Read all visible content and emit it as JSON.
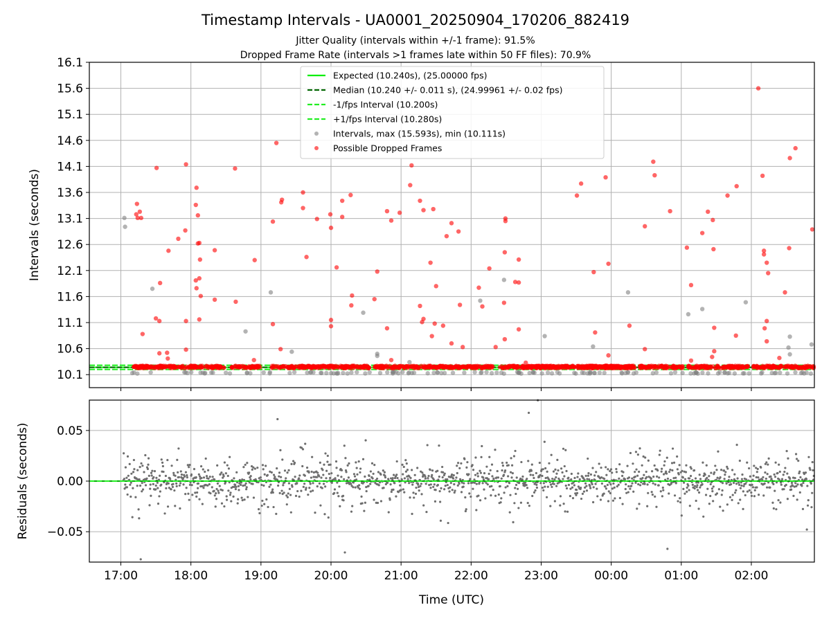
{
  "chart_data": {
    "title": "Timestamp Intervals - UA0001_20250904_170206_882419",
    "subtitle_1": "Jitter Quality (intervals within +/-1 frame): 91.5%",
    "subtitle_2": "Dropped Frame Rate (intervals >1 frames late within 50 FF files): 70.9%",
    "xlabel": "Time (UTC)",
    "x_ticks": [
      "17:00",
      "18:00",
      "19:00",
      "20:00",
      "21:00",
      "22:00",
      "23:00",
      "00:00",
      "01:00",
      "02:00"
    ],
    "x_tick_hours": [
      17,
      18,
      19,
      20,
      21,
      22,
      23,
      24,
      25,
      26
    ],
    "x_range_hours": [
      16.55,
      26.9
    ],
    "data_start_hour": 17.035,
    "top": {
      "type": "scatter",
      "ylabel": "Intervals (seconds)",
      "y_ticks": [
        "10.1",
        "10.6",
        "11.1",
        "11.6",
        "12.1",
        "12.6",
        "13.1",
        "13.6",
        "14.1",
        "14.6",
        "15.1",
        "15.6",
        "16.1"
      ],
      "ylim": [
        9.85,
        16.1
      ],
      "grid": true,
      "expected": 10.24,
      "median": 10.24,
      "lower": 10.2,
      "upper": 10.28,
      "legend": [
        {
          "label": "Expected (10.240s), (25.00000 fps)",
          "style": "solid",
          "color": "#00ee00"
        },
        {
          "label": "Median (10.240 +/- 0.011 s), (24.99961 +/- 0.02 fps)",
          "style": "dashed",
          "color": "#006400"
        },
        {
          "label": "-1/fps Interval (10.200s)",
          "style": "dashed",
          "color": "#22ee22"
        },
        {
          "label": "+1/fps Interval (10.280s)",
          "style": "dashed",
          "color": "#22ee22"
        },
        {
          "label": "Intervals, max (15.593s), min (10.111s)",
          "style": "marker",
          "color": "#808080"
        },
        {
          "label": "Possible Dropped Frames",
          "style": "marker",
          "color": "#ff0000"
        }
      ],
      "dropped_points": [
        [
          17.23,
          13.38
        ],
        [
          17.22,
          13.18
        ],
        [
          17.27,
          13.23
        ],
        [
          17.29,
          13.11
        ],
        [
          17.24,
          13.11
        ],
        [
          17.31,
          10.88
        ],
        [
          17.51,
          14.07
        ],
        [
          17.5,
          11.18
        ],
        [
          17.55,
          11.13
        ],
        [
          17.56,
          11.86
        ],
        [
          17.55,
          10.51
        ],
        [
          17.66,
          10.52
        ],
        [
          17.67,
          10.41
        ],
        [
          17.68,
          12.48
        ],
        [
          17.82,
          12.71
        ],
        [
          17.92,
          12.87
        ],
        [
          17.93,
          14.14
        ],
        [
          17.93,
          11.13
        ],
        [
          17.93,
          10.58
        ],
        [
          18.07,
          13.36
        ],
        [
          18.08,
          13.69
        ],
        [
          18.1,
          13.16
        ],
        [
          18.1,
          12.62
        ],
        [
          18.12,
          12.63
        ],
        [
          18.13,
          12.31
        ],
        [
          18.07,
          11.91
        ],
        [
          18.12,
          11.95
        ],
        [
          18.08,
          11.76
        ],
        [
          18.14,
          11.61
        ],
        [
          18.12,
          11.16
        ],
        [
          18.34,
          12.49
        ],
        [
          18.34,
          11.54
        ],
        [
          18.63,
          14.06
        ],
        [
          18.64,
          11.5
        ],
        [
          18.91,
          12.3
        ],
        [
          18.9,
          10.38
        ],
        [
          19.17,
          13.04
        ],
        [
          19.22,
          14.55
        ],
        [
          19.3,
          13.46
        ],
        [
          19.29,
          13.41
        ],
        [
          19.17,
          11.07
        ],
        [
          19.28,
          10.59
        ],
        [
          19.6,
          13.6
        ],
        [
          19.6,
          13.3
        ],
        [
          19.65,
          12.36
        ],
        [
          19.8,
          13.09
        ],
        [
          19.99,
          13.18
        ],
        [
          20.0,
          12.92
        ],
        [
          20.0,
          11.15
        ],
        [
          20.0,
          11.03
        ],
        [
          20.08,
          12.16
        ],
        [
          20.16,
          13.44
        ],
        [
          20.16,
          13.13
        ],
        [
          20.28,
          13.55
        ],
        [
          20.3,
          11.62
        ],
        [
          20.29,
          11.43
        ],
        [
          20.62,
          11.55
        ],
        [
          20.66,
          12.08
        ],
        [
          20.8,
          13.24
        ],
        [
          20.86,
          13.06
        ],
        [
          20.8,
          10.99
        ],
        [
          20.86,
          10.38
        ],
        [
          20.98,
          13.21
        ],
        [
          21.13,
          13.74
        ],
        [
          21.15,
          14.12
        ],
        [
          21.27,
          13.44
        ],
        [
          21.32,
          13.26
        ],
        [
          21.27,
          11.42
        ],
        [
          21.32,
          11.17
        ],
        [
          21.3,
          11.11
        ],
        [
          21.42,
          12.25
        ],
        [
          21.46,
          13.28
        ],
        [
          21.48,
          11.08
        ],
        [
          21.44,
          10.84
        ],
        [
          21.5,
          11.8
        ],
        [
          21.6,
          11.04
        ],
        [
          21.65,
          12.76
        ],
        [
          21.72,
          13.01
        ],
        [
          21.72,
          10.7
        ],
        [
          21.82,
          12.85
        ],
        [
          21.84,
          11.44
        ],
        [
          21.88,
          10.63
        ],
        [
          22.11,
          11.77
        ],
        [
          22.16,
          11.41
        ],
        [
          22.26,
          12.14
        ],
        [
          22.35,
          10.63
        ],
        [
          22.49,
          13.1
        ],
        [
          22.49,
          13.05
        ],
        [
          22.48,
          12.45
        ],
        [
          22.47,
          11.48
        ],
        [
          22.48,
          10.78
        ],
        [
          22.63,
          11.88
        ],
        [
          22.68,
          11.87
        ],
        [
          22.68,
          12.31
        ],
        [
          22.68,
          10.97
        ],
        [
          22.78,
          10.33
        ],
        [
          23.51,
          13.54
        ],
        [
          23.57,
          13.77
        ],
        [
          23.75,
          12.07
        ],
        [
          23.77,
          10.91
        ],
        [
          23.92,
          13.89
        ],
        [
          23.96,
          12.23
        ],
        [
          23.96,
          10.47
        ],
        [
          24.26,
          11.04
        ],
        [
          24.48,
          12.95
        ],
        [
          24.48,
          10.59
        ],
        [
          24.6,
          14.19
        ],
        [
          24.62,
          13.93
        ],
        [
          24.84,
          13.24
        ],
        [
          25.08,
          12.54
        ],
        [
          25.14,
          11.82
        ],
        [
          25.14,
          10.37
        ],
        [
          25.3,
          12.82
        ],
        [
          25.38,
          13.23
        ],
        [
          25.45,
          13.07
        ],
        [
          25.46,
          12.51
        ],
        [
          25.47,
          11.0
        ],
        [
          25.47,
          10.55
        ],
        [
          25.44,
          10.44
        ],
        [
          25.66,
          13.54
        ],
        [
          25.79,
          13.72
        ],
        [
          25.78,
          10.85
        ],
        [
          26.1,
          15.6
        ],
        [
          26.16,
          13.92
        ],
        [
          26.18,
          12.48
        ],
        [
          26.18,
          12.41
        ],
        [
          26.22,
          12.25
        ],
        [
          26.24,
          12.05
        ],
        [
          26.22,
          11.13
        ],
        [
          26.19,
          10.99
        ],
        [
          26.22,
          10.74
        ],
        [
          26.4,
          10.42
        ],
        [
          26.48,
          11.68
        ],
        [
          26.54,
          12.53
        ],
        [
          26.55,
          14.26
        ],
        [
          26.63,
          14.45
        ],
        [
          26.87,
          12.89
        ]
      ],
      "gray_points": [
        [
          17.05,
          13.11
        ],
        [
          17.06,
          12.94
        ],
        [
          17.45,
          11.75
        ],
        [
          18.78,
          10.93
        ],
        [
          19.14,
          11.68
        ],
        [
          19.44,
          10.54
        ],
        [
          20.46,
          11.29
        ],
        [
          20.66,
          10.5
        ],
        [
          20.66,
          10.46
        ],
        [
          21.12,
          10.34
        ],
        [
          22.13,
          11.52
        ],
        [
          22.47,
          11.92
        ],
        [
          23.05,
          10.84
        ],
        [
          23.74,
          10.64
        ],
        [
          24.24,
          11.68
        ],
        [
          25.1,
          11.26
        ],
        [
          25.3,
          11.36
        ],
        [
          25.92,
          11.49
        ],
        [
          26.55,
          10.83
        ],
        [
          26.55,
          10.49
        ],
        [
          26.53,
          10.62
        ],
        [
          26.86,
          10.68
        ]
      ]
    },
    "bottom": {
      "type": "scatter",
      "ylabel": "Residuals (seconds)",
      "y_ticks": [
        "−0.05",
        "0.00",
        "0.05"
      ],
      "y_tick_values": [
        -0.05,
        0.0,
        0.05
      ],
      "ylim": [
        -0.08,
        0.08
      ],
      "grid": true,
      "point_count": 1500,
      "point_color": "#6e6e6e"
    }
  }
}
